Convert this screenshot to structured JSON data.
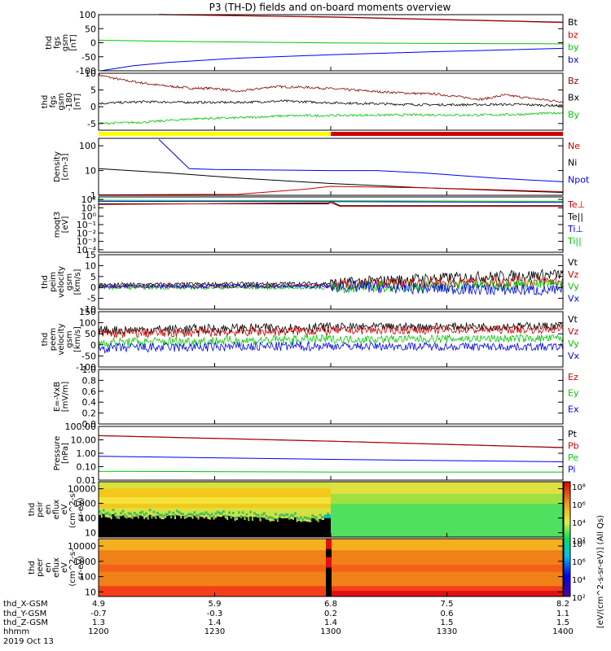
{
  "title": "P3 (TH-D) fields and on-board moments overview",
  "colors": {
    "black": "#000000",
    "red": "#cc0000",
    "green": "#00c800",
    "blue": "#0000ee",
    "darkred": "#8b0000",
    "yellow": "#ffff00"
  },
  "chart_data": [
    {
      "id": "fgs",
      "type": "line",
      "ylabel": [
        "thd",
        "fgs",
        "gsm",
        "[nT]"
      ],
      "ylim": [
        -100,
        100
      ],
      "yticks": [
        -100,
        -50,
        0,
        50,
        100
      ],
      "legend": [
        {
          "name": "Bt",
          "color": "black"
        },
        {
          "name": "bz",
          "color": "red"
        },
        {
          "name": "by",
          "color": "green"
        },
        {
          "name": "bx",
          "color": "blue"
        }
      ],
      "series": [
        {
          "name": "Bt",
          "color": "black",
          "x": [
            1226,
            1300,
            1400
          ],
          "y": [
            101,
            92,
            73
          ]
        },
        {
          "name": "bz",
          "color": "red",
          "x": [
            1226,
            1300,
            1400
          ],
          "y": [
            100,
            91,
            72
          ]
        },
        {
          "name": "by",
          "color": "green",
          "x": [
            1200,
            1230,
            1300,
            1400
          ],
          "y": [
            9,
            5,
            -1,
            -4
          ]
        },
        {
          "name": "bx",
          "color": "blue",
          "x": [
            1201,
            1215,
            1230,
            1260,
            1300,
            1340,
            1400
          ],
          "y": [
            -100,
            -82,
            -70,
            -55,
            -43,
            -33,
            -20
          ]
        }
      ]
    },
    {
      "id": "fgs_dsl",
      "type": "line",
      "ylabel": [
        "thd",
        "fgs",
        "gsm",
        "-180",
        "[nT]"
      ],
      "ylim": [
        -7,
        10
      ],
      "yticks": [
        -5,
        0,
        5,
        10
      ],
      "legend": [
        {
          "name": "Bz",
          "color": "darkred"
        },
        {
          "name": "Bx",
          "color": "black"
        },
        {
          "name": "By",
          "color": "green"
        }
      ],
      "series": [
        {
          "name": "Bz",
          "color": "darkred",
          "x": [
            1200,
            1210,
            1225,
            1240,
            1250,
            1260,
            1275,
            1290,
            1305,
            1320,
            1335,
            1345,
            1355,
            1365,
            1375,
            1390,
            1400
          ],
          "y": [
            9.5,
            8,
            6.5,
            5.5,
            5.5,
            4.5,
            6,
            5.8,
            5.2,
            4.5,
            4,
            3.8,
            3,
            2.2,
            3.5,
            2.2,
            1.5
          ]
        },
        {
          "name": "Bx",
          "color": "black",
          "x": [
            1200,
            1220,
            1240,
            1260,
            1280,
            1300,
            1320,
            1340,
            1360,
            1380,
            1400
          ],
          "y": [
            1,
            1.5,
            1.3,
            1.3,
            1.7,
            1.2,
            0.9,
            0.6,
            0.6,
            0.7,
            0.3
          ]
        },
        {
          "name": "By",
          "color": "green",
          "x": [
            1200,
            1220,
            1240,
            1260,
            1280,
            1300,
            1320,
            1340,
            1360,
            1380,
            1400
          ],
          "y": [
            -5,
            -4.6,
            -3.6,
            -3.3,
            -2.7,
            -2.6,
            -2.5,
            -2.4,
            -2.5,
            -2.3,
            -1.8
          ]
        }
      ]
    },
    {
      "id": "mode_bar",
      "type": "bar",
      "segments": [
        {
          "start": 1200,
          "end": 1300,
          "color": "yellow"
        },
        {
          "start": 1300,
          "end": 1400,
          "color": "red"
        }
      ]
    },
    {
      "id": "density",
      "type": "line",
      "log": true,
      "ylabel": [
        "Density",
        "[cm-3]"
      ],
      "ylim": [
        1,
        200
      ],
      "yticks": [
        1,
        10,
        100
      ],
      "legend": [
        {
          "name": "Ne",
          "color": "red"
        },
        {
          "name": "Ni",
          "color": "black"
        },
        {
          "name": "Npot",
          "color": "blue"
        }
      ],
      "series": [
        {
          "name": "Ni",
          "color": "black",
          "x": [
            1200,
            1230,
            1260,
            1300,
            1340,
            1370,
            1400
          ],
          "y": [
            12,
            8,
            5,
            3,
            2,
            1.6,
            1.3
          ]
        },
        {
          "name": "Npot",
          "color": "blue",
          "x": [
            1226,
            1239,
            1250,
            1300,
            1320,
            1340,
            1370,
            1400
          ],
          "y": [
            180,
            12,
            11,
            10,
            10,
            8,
            5,
            3.5
          ]
        },
        {
          "name": "Ne",
          "color": "red",
          "x": [
            1200,
            1260,
            1290,
            1300,
            1340,
            1400
          ],
          "y": [
            1.05,
            1.1,
            1.8,
            2.3,
            2.0,
            1.4
          ]
        }
      ]
    },
    {
      "id": "temperature",
      "type": "line",
      "log": true,
      "ylabel": [
        "moqt3",
        "[eV]"
      ],
      "ylim": [
        5e-05,
        200
      ],
      "yticks": [
        0.0001,
        0.001,
        0.01,
        0.1,
        1,
        10,
        100
      ],
      "ytick_labels": [
        "10⁻⁴",
        "10⁻³",
        "10⁻²",
        "10⁻¹",
        "10⁰",
        "10¹",
        "10²"
      ],
      "legend": [
        {
          "name": "Te⊥",
          "color": "red"
        },
        {
          "name": "Te||",
          "color": "black"
        },
        {
          "name": "Ti⊥",
          "color": "blue"
        },
        {
          "name": "Ti||",
          "color": "green"
        }
      ],
      "series": [
        {
          "name": "Te||",
          "color": "black",
          "x": [
            1200,
            1299,
            1300,
            1304,
            1400
          ],
          "y": [
            30,
            30,
            60,
            18,
            18
          ]
        },
        {
          "name": "Te⊥",
          "color": "red",
          "x": [
            1200,
            1300,
            1304,
            1400
          ],
          "y": [
            25,
            40,
            15,
            15
          ]
        },
        {
          "name": "Ti⊥",
          "color": "blue",
          "x": [
            1200,
            1300,
            1400
          ],
          "y": [
            60,
            55,
            45
          ]
        },
        {
          "name": "Ti||",
          "color": "green",
          "x": [
            1200,
            1300,
            1400
          ],
          "y": [
            80,
            70,
            60
          ]
        }
      ]
    },
    {
      "id": "peim_velocity",
      "type": "line",
      "ylabel": [
        "thd",
        "peim",
        "velocity",
        "gsm",
        "[km/s]"
      ],
      "ylim": [
        -10,
        15
      ],
      "yticks": [
        -10,
        -5,
        0,
        5,
        10,
        15
      ],
      "legend": [
        {
          "name": "Vt",
          "color": "black"
        },
        {
          "name": "Vz",
          "color": "red"
        },
        {
          "name": "Vy",
          "color": "green"
        },
        {
          "name": "Vx",
          "color": "blue"
        }
      ],
      "series": [
        {
          "name": "Vt",
          "color": "black",
          "x": [
            1200,
            1300,
            1340,
            1400
          ],
          "y": [
            1.2,
            1.8,
            4,
            6
          ]
        },
        {
          "name": "Vz",
          "color": "red",
          "x": [
            1200,
            1300,
            1340,
            1400
          ],
          "y": [
            0.6,
            0.6,
            2,
            3
          ]
        },
        {
          "name": "Vy",
          "color": "green",
          "x": [
            1200,
            1300,
            1340,
            1400
          ],
          "y": [
            0,
            0,
            0.5,
            1.5
          ]
        },
        {
          "name": "Vx",
          "color": "blue",
          "x": [
            1200,
            1300,
            1340,
            1400
          ],
          "y": [
            0.5,
            0.5,
            -0.5,
            -1.5
          ]
        }
      ]
    },
    {
      "id": "peem_velocity",
      "type": "line",
      "ylabel": [
        "thd",
        "peem",
        "velocity",
        "gsm",
        "[km/s]"
      ],
      "ylim": [
        -100,
        150
      ],
      "yticks": [
        -100,
        -50,
        0,
        50,
        100,
        150
      ],
      "legend": [
        {
          "name": "Vt",
          "color": "black"
        },
        {
          "name": "Vz",
          "color": "red"
        },
        {
          "name": "Vy",
          "color": "green"
        },
        {
          "name": "Vx",
          "color": "blue"
        }
      ],
      "series": [
        {
          "name": "Vt",
          "color": "black",
          "x": [
            1200,
            1300,
            1400
          ],
          "y": [
            65,
            80,
            85
          ]
        },
        {
          "name": "Vz",
          "color": "red",
          "x": [
            1200,
            1300,
            1400
          ],
          "y": [
            50,
            65,
            70
          ]
        },
        {
          "name": "Vy",
          "color": "green",
          "x": [
            1200,
            1300,
            1400
          ],
          "y": [
            10,
            25,
            30
          ]
        },
        {
          "name": "Vx",
          "color": "blue",
          "x": [
            1200,
            1300,
            1400
          ],
          "y": [
            -15,
            -5,
            -10
          ]
        }
      ]
    },
    {
      "id": "efield",
      "type": "line",
      "ylabel": [
        "E=-VxB",
        "[mV/m]"
      ],
      "ylim": [
        0,
        1
      ],
      "yticks": [
        0,
        0.2,
        0.4,
        0.6,
        0.8,
        1
      ],
      "ytick_labels": [
        "0.0",
        "0.2",
        "0.4",
        "0.6",
        "0.8",
        "1.0"
      ],
      "legend": [
        {
          "name": "Ez",
          "color": "red"
        },
        {
          "name": "Ey",
          "color": "green"
        },
        {
          "name": "Ex",
          "color": "blue"
        }
      ],
      "series": []
    },
    {
      "id": "pressure",
      "type": "line",
      "log": true,
      "ylabel": [
        "Pressure",
        "[nPa]"
      ],
      "ylim": [
        0.01,
        100
      ],
      "yticks": [
        0.01,
        0.1,
        1,
        10,
        100
      ],
      "ytick_labels": [
        "0.01",
        "0.10",
        "1.00",
        "10.00",
        "100.00"
      ],
      "legend": [
        {
          "name": "Pt",
          "color": "black"
        },
        {
          "name": "Pb",
          "color": "red"
        },
        {
          "name": "Pe",
          "color": "green"
        },
        {
          "name": "Pi",
          "color": "blue"
        }
      ],
      "series": [
        {
          "name": "Pt",
          "color": "black",
          "x": [
            1200,
            1300,
            1400
          ],
          "y": [
            21,
            8,
            2.7
          ]
        },
        {
          "name": "Pb",
          "color": "red",
          "x": [
            1200,
            1300,
            1400
          ],
          "y": [
            20,
            7.8,
            2.6
          ]
        },
        {
          "name": "Pi",
          "color": "blue",
          "x": [
            1200,
            1300,
            1400
          ],
          "y": [
            0.6,
            0.35,
            0.23
          ]
        },
        {
          "name": "Pe",
          "color": "green",
          "x": [
            1200,
            1300,
            1400
          ],
          "y": [
            0.045,
            0.04,
            0.04
          ]
        }
      ]
    },
    {
      "id": "peir_spec",
      "type": "heatmap",
      "log": true,
      "ylabel": [
        "thd",
        "peir",
        "en",
        "eflux",
        "eV",
        "(cm^2-s-",
        "sr-eV)"
      ],
      "ylim": [
        5,
        30000
      ],
      "yticks": [
        10,
        100,
        1000,
        10000
      ]
    },
    {
      "id": "peer_spec",
      "type": "heatmap",
      "log": true,
      "ylabel": [
        "thd",
        "peer",
        "en",
        "eflux",
        "eV",
        "(cm^2-s-",
        "sr-eV)"
      ],
      "ylim": [
        5,
        30000
      ],
      "yticks": [
        10,
        100,
        1000,
        10000
      ]
    }
  ],
  "colorbar": {
    "tick_labels": [
      "10⁸",
      "10⁶",
      "10⁴",
      "10²"
    ],
    "label": "[eV/(cm^2-s-sr-eV)] (All Qs)"
  },
  "xaxis": {
    "range": [
      1200,
      1400
    ],
    "rows": [
      {
        "label": "thd_X-GSM",
        "values": [
          "4.9",
          "5.9",
          "6.8",
          "7.5",
          "8.2"
        ]
      },
      {
        "label": "thd_Y-GSM",
        "values": [
          "-0.7",
          "-0.3",
          "0.2",
          "0.6",
          "1.1"
        ]
      },
      {
        "label": "thd_Z-GSM",
        "values": [
          "1.3",
          "1.4",
          "1.4",
          "1.5",
          "1.5"
        ]
      },
      {
        "label": "hhmm",
        "values": [
          "1200",
          "1230",
          "1300",
          "1330",
          "1400"
        ]
      }
    ],
    "date": "2019 Oct 13"
  }
}
